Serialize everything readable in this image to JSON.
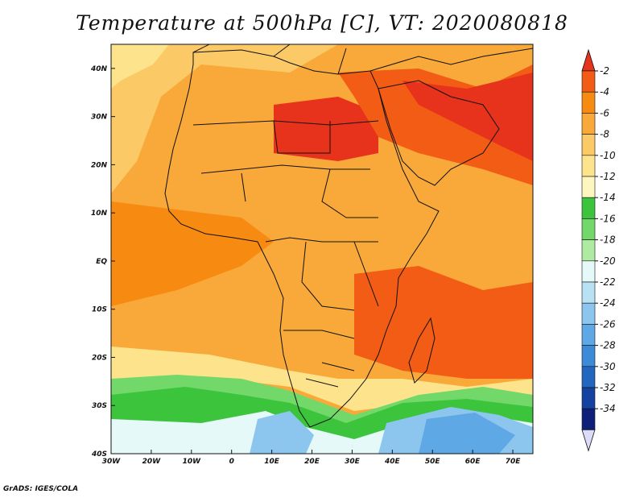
{
  "title": "Temperature at 500hPa [C], VT: 2020080818",
  "footer": "GrADS: IGES/COLA",
  "map": {
    "lon_range": [
      -30,
      75
    ],
    "lat_range": [
      -40,
      45
    ],
    "lon_ticks": [
      {
        "value": -30,
        "label": "30W"
      },
      {
        "value": -20,
        "label": "20W"
      },
      {
        "value": -10,
        "label": "10W"
      },
      {
        "value": 0,
        "label": "0"
      },
      {
        "value": 10,
        "label": "10E"
      },
      {
        "value": 20,
        "label": "20E"
      },
      {
        "value": 30,
        "label": "30E"
      },
      {
        "value": 40,
        "label": "40E"
      },
      {
        "value": 50,
        "label": "50E"
      },
      {
        "value": 60,
        "label": "60E"
      },
      {
        "value": 70,
        "label": "70E"
      }
    ],
    "lat_ticks": [
      {
        "value": 40,
        "label": "40N"
      },
      {
        "value": 30,
        "label": "30N"
      },
      {
        "value": 20,
        "label": "20N"
      },
      {
        "value": 10,
        "label": "10N"
      },
      {
        "value": 0,
        "label": "EQ"
      },
      {
        "value": -10,
        "label": "10S"
      },
      {
        "value": -20,
        "label": "20S"
      },
      {
        "value": -30,
        "label": "30S"
      },
      {
        "value": -40,
        "label": "40S"
      }
    ]
  },
  "colorbar": {
    "levels": [
      {
        "label": "-2",
        "color": "#e8331c"
      },
      {
        "label": "-4",
        "color": "#f25c14"
      },
      {
        "label": "-6",
        "color": "#f78a10"
      },
      {
        "label": "-8",
        "color": "#f9a93a"
      },
      {
        "label": "-10",
        "color": "#fbc966"
      },
      {
        "label": "-12",
        "color": "#fde48c"
      },
      {
        "label": "-14",
        "color": "#fdf6bf"
      },
      {
        "label": "-16",
        "color": "#3cc43c"
      },
      {
        "label": "-18",
        "color": "#72d86a"
      },
      {
        "label": "-20",
        "color": "#aeeaa0"
      },
      {
        "label": "-22",
        "color": "#e6f9f9"
      },
      {
        "label": "-24",
        "color": "#b8e2f4"
      },
      {
        "label": "-26",
        "color": "#8cc6ee"
      },
      {
        "label": "-28",
        "color": "#5fa8e6"
      },
      {
        "label": "-30",
        "color": "#3c8ad8"
      },
      {
        "label": "-32",
        "color": "#2266c0"
      },
      {
        "label": "-34",
        "color": "#1442a0"
      },
      {
        "label": "",
        "color": "#0e1f7a"
      },
      {
        "label": "",
        "color": "#dcdcf8"
      }
    ]
  }
}
